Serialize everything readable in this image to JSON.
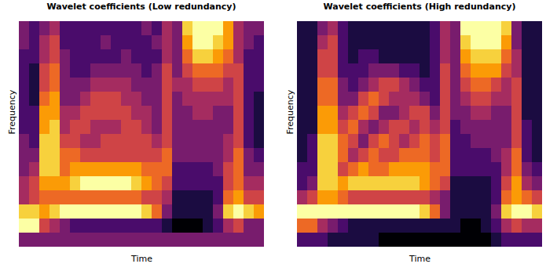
{
  "chart_data": [
    {
      "type": "heatmap",
      "title": "Wavelet coefficients (Low redundancy)",
      "xlabel": "Time",
      "ylabel": "Frequency",
      "tick_labels": false,
      "color": "inferno",
      "cells": [
        [
          3,
          2,
          3,
          4,
          2,
          2,
          2,
          2,
          2,
          2,
          2,
          2,
          3,
          2,
          4,
          3,
          8,
          9,
          9,
          9,
          7,
          4,
          3,
          3
        ],
        [
          3,
          2,
          4,
          5,
          2,
          2,
          2,
          2,
          3,
          2,
          2,
          2,
          2,
          3,
          4,
          3,
          7,
          9,
          9,
          8,
          7,
          4,
          3,
          2
        ],
        [
          2,
          2,
          4,
          5,
          3,
          2,
          2,
          2,
          2,
          2,
          3,
          2,
          2,
          2,
          4,
          3,
          6,
          8,
          8,
          7,
          6,
          4,
          2,
          2
        ],
        [
          2,
          1,
          5,
          6,
          3,
          2,
          2,
          3,
          3,
          3,
          3,
          3,
          2,
          3,
          5,
          3,
          5,
          6,
          6,
          6,
          5,
          5,
          2,
          2
        ],
        [
          2,
          1,
          5,
          6,
          3,
          3,
          3,
          4,
          4,
          4,
          4,
          3,
          3,
          3,
          5,
          4,
          4,
          5,
          5,
          5,
          4,
          5,
          2,
          2
        ],
        [
          2,
          1,
          6,
          7,
          3,
          3,
          4,
          5,
          5,
          5,
          4,
          4,
          3,
          3,
          5,
          3,
          4,
          4,
          4,
          4,
          4,
          5,
          2,
          1
        ],
        [
          2,
          2,
          7,
          7,
          4,
          4,
          5,
          5,
          5,
          5,
          5,
          4,
          4,
          3,
          5,
          3,
          3,
          4,
          4,
          3,
          3,
          5,
          2,
          1
        ],
        [
          2,
          2,
          7,
          8,
          4,
          5,
          5,
          4,
          4,
          4,
          5,
          5,
          4,
          3,
          5,
          3,
          3,
          3,
          3,
          3,
          3,
          5,
          2,
          1
        ],
        [
          3,
          2,
          8,
          8,
          5,
          5,
          4,
          4,
          5,
          5,
          5,
          5,
          5,
          4,
          5,
          3,
          3,
          3,
          3,
          3,
          4,
          5,
          2,
          1
        ],
        [
          3,
          3,
          8,
          8,
          6,
          6,
          5,
          5,
          5,
          5,
          5,
          5,
          5,
          5,
          6,
          3,
          3,
          3,
          3,
          3,
          4,
          6,
          3,
          2
        ],
        [
          3,
          4,
          8,
          8,
          6,
          7,
          7,
          7,
          7,
          7,
          7,
          7,
          6,
          6,
          6,
          2,
          2,
          2,
          2,
          3,
          5,
          6,
          3,
          3
        ],
        [
          4,
          5,
          7,
          7,
          7,
          8,
          9,
          9,
          9,
          9,
          9,
          8,
          7,
          6,
          5,
          2,
          2,
          2,
          2,
          2,
          5,
          6,
          4,
          4
        ],
        [
          4,
          5,
          6,
          6,
          6,
          6,
          6,
          6,
          6,
          6,
          6,
          6,
          5,
          5,
          4,
          1,
          1,
          1,
          1,
          2,
          6,
          7,
          5,
          5
        ],
        [
          8,
          8,
          7,
          8,
          9,
          9,
          9,
          9,
          9,
          9,
          9,
          9,
          8,
          6,
          3,
          1,
          1,
          1,
          1,
          3,
          8,
          9,
          8,
          7
        ],
        [
          9,
          9,
          5,
          4,
          3,
          2,
          2,
          2,
          2,
          2,
          2,
          2,
          2,
          2,
          1,
          0,
          0,
          0,
          1,
          2,
          4,
          5,
          3,
          3
        ],
        [
          3,
          3,
          3,
          3,
          3,
          3,
          3,
          3,
          3,
          3,
          3,
          3,
          3,
          3,
          3,
          3,
          3,
          3,
          3,
          3,
          3,
          3,
          3,
          3
        ]
      ]
    },
    {
      "type": "heatmap",
      "title": "Wavelet coefficients (High redundancy)",
      "xlabel": "Time",
      "ylabel": "Frequency",
      "tick_labels": false,
      "color": "inferno",
      "cells": [
        [
          1,
          1,
          3,
          4,
          2,
          1,
          1,
          1,
          1,
          1,
          1,
          1,
          1,
          2,
          4,
          3,
          9,
          9,
          9,
          9,
          8,
          3,
          1,
          1
        ],
        [
          1,
          1,
          4,
          5,
          2,
          1,
          1,
          1,
          1,
          1,
          1,
          1,
          1,
          2,
          4,
          3,
          8,
          9,
          9,
          9,
          7,
          3,
          1,
          1
        ],
        [
          1,
          1,
          5,
          5,
          2,
          1,
          2,
          2,
          1,
          1,
          1,
          1,
          1,
          2,
          4,
          3,
          7,
          8,
          8,
          8,
          6,
          4,
          1,
          1
        ],
        [
          1,
          1,
          5,
          5,
          2,
          2,
          2,
          3,
          3,
          3,
          2,
          2,
          1,
          2,
          5,
          3,
          6,
          7,
          7,
          7,
          5,
          4,
          1,
          1
        ],
        [
          1,
          1,
          6,
          6,
          3,
          2,
          3,
          4,
          5,
          5,
          4,
          3,
          2,
          2,
          5,
          3,
          5,
          6,
          6,
          5,
          4,
          5,
          1,
          1
        ],
        [
          1,
          1,
          6,
          6,
          3,
          3,
          5,
          6,
          5,
          4,
          4,
          4,
          3,
          2,
          5,
          3,
          4,
          5,
          5,
          4,
          4,
          5,
          1,
          1
        ],
        [
          1,
          1,
          7,
          7,
          4,
          5,
          6,
          5,
          3,
          3,
          4,
          5,
          5,
          3,
          5,
          3,
          3,
          4,
          4,
          3,
          3,
          5,
          1,
          1
        ],
        [
          1,
          1,
          7,
          7,
          5,
          6,
          4,
          3,
          4,
          5,
          5,
          4,
          5,
          4,
          5,
          2,
          3,
          3,
          3,
          3,
          3,
          5,
          2,
          1
        ],
        [
          1,
          2,
          8,
          8,
          6,
          5,
          3,
          5,
          6,
          5,
          4,
          5,
          6,
          5,
          6,
          2,
          2,
          3,
          3,
          3,
          3,
          5,
          2,
          1
        ],
        [
          1,
          2,
          8,
          8,
          6,
          4,
          5,
          6,
          5,
          5,
          6,
          6,
          6,
          5,
          6,
          2,
          2,
          2,
          2,
          3,
          4,
          6,
          2,
          1
        ],
        [
          2,
          2,
          8,
          8,
          5,
          6,
          7,
          6,
          6,
          7,
          7,
          7,
          7,
          6,
          6,
          2,
          2,
          2,
          2,
          2,
          4,
          6,
          3,
          2
        ],
        [
          2,
          3,
          8,
          8,
          7,
          8,
          8,
          8,
          8,
          8,
          8,
          8,
          7,
          6,
          5,
          1,
          1,
          1,
          1,
          2,
          5,
          7,
          4,
          3
        ],
        [
          4,
          5,
          7,
          7,
          6,
          5,
          5,
          5,
          5,
          5,
          5,
          5,
          5,
          4,
          3,
          1,
          1,
          1,
          1,
          2,
          6,
          7,
          6,
          5
        ],
        [
          9,
          9,
          9,
          9,
          9,
          9,
          9,
          9,
          9,
          9,
          9,
          9,
          8,
          6,
          3,
          1,
          1,
          1,
          1,
          3,
          8,
          9,
          9,
          8
        ],
        [
          6,
          6,
          4,
          3,
          2,
          1,
          1,
          1,
          1,
          1,
          1,
          1,
          1,
          1,
          1,
          1,
          0,
          0,
          1,
          2,
          4,
          5,
          4,
          4
        ],
        [
          2,
          2,
          2,
          1,
          1,
          1,
          1,
          1,
          0,
          0,
          0,
          0,
          0,
          0,
          0,
          0,
          0,
          0,
          0,
          1,
          2,
          2,
          2,
          2
        ]
      ]
    }
  ]
}
